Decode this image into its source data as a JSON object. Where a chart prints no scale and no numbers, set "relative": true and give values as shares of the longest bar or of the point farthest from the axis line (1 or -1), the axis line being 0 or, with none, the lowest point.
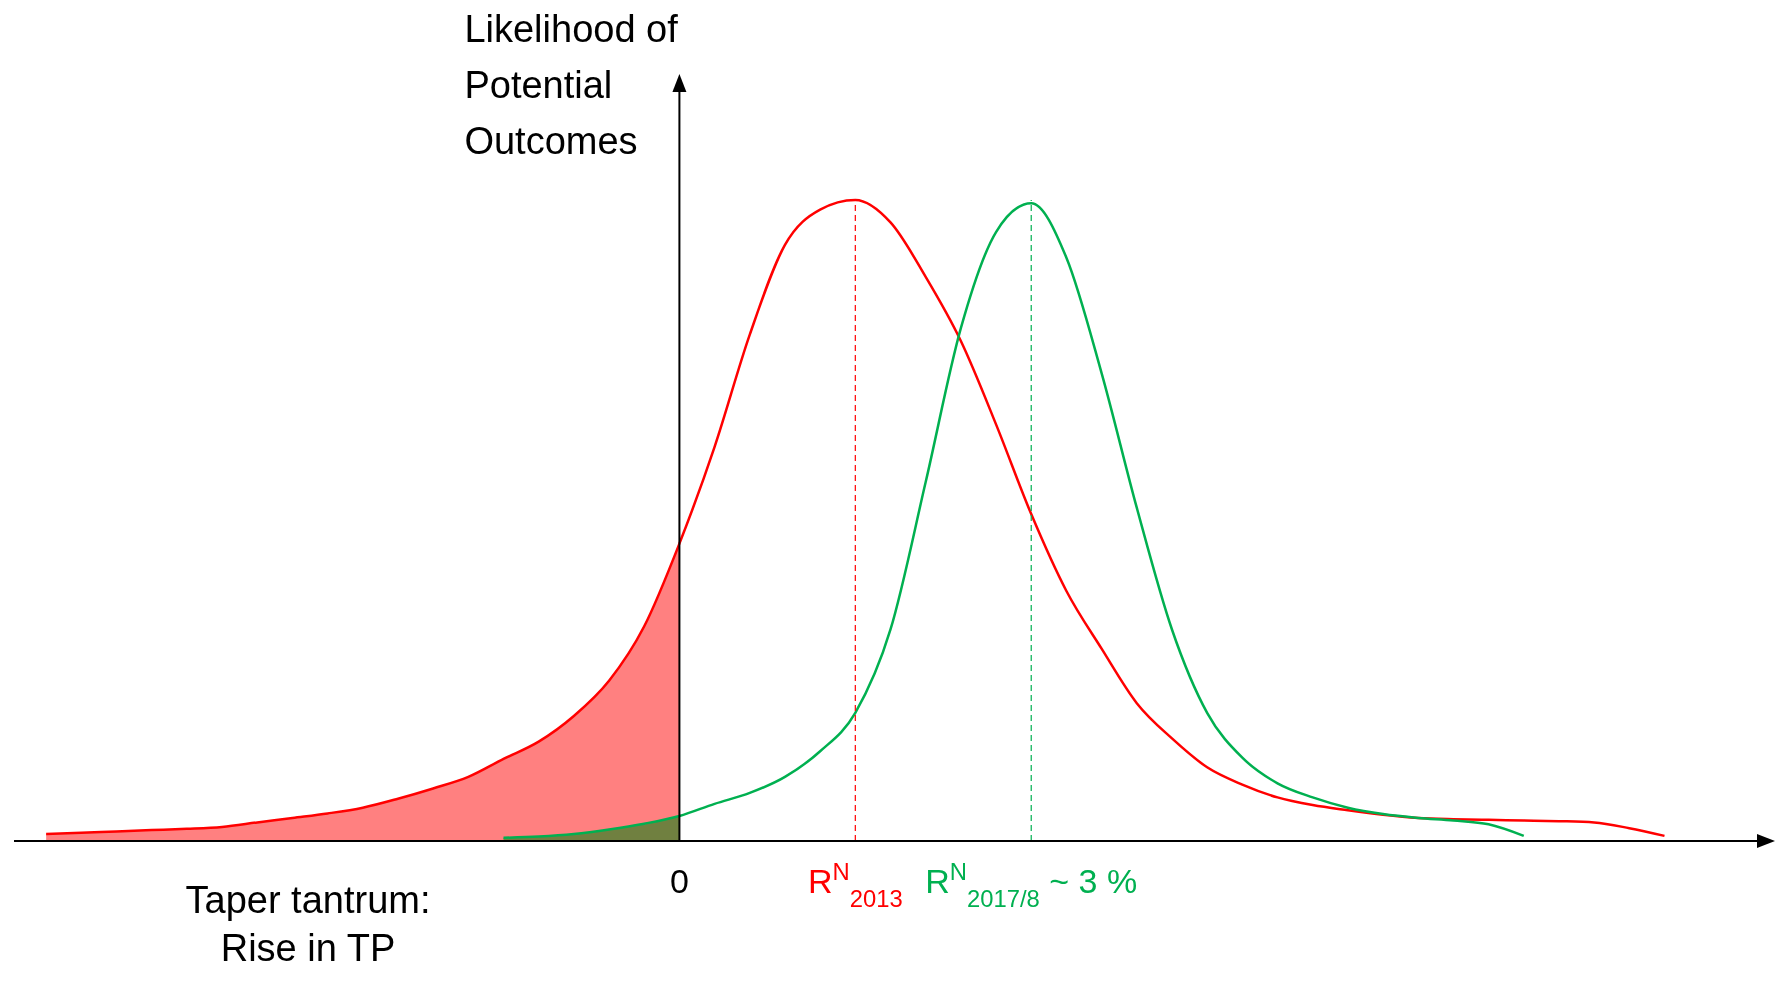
{
  "chart_data": {
    "type": "line",
    "relative": true,
    "xlabel": "Taper tantrum:\nRise in TP",
    "ylabel": "Likelihood of\nPotential\nOutcomes",
    "tick_labels": "x",
    "line_style": "solid",
    "grid": false,
    "marker": "none",
    "categories": [
      null,
      null,
      null,
      null,
      null,
      null,
      null,
      null,
      null,
      null,
      null,
      null,
      null,
      null,
      null,
      null,
      null,
      null,
      "0",
      null,
      null,
      null,
      null,
      "R$^{N}$$_{2013}$",
      null,
      null,
      null,
      null,
      "R$^{N}$$_{2017/8}$ ~ 3 %",
      null,
      null,
      null,
      null,
      null,
      null,
      null,
      null,
      null,
      null,
      null,
      null,
      null,
      null,
      null,
      null,
      null,
      null
    ],
    "ref_lines": [
      {
        "axis": "x",
        "value": "R$^{N}$$_{2013}$",
        "color": "#ff0000",
        "line_style": "dashed"
      },
      {
        "axis": "x",
        "value": "R$^{N}$$_{2017/8}$ ~ 3 %",
        "color": "#00b050",
        "line_style": "dashed"
      }
    ],
    "series": [
      {
        "type": "area",
        "color": "#ff8080",
        "values": [
          0.011,
          0.013,
          0.015,
          0.017,
          0.019,
          0.022,
          0.029,
          0.036,
          0.043,
          0.052,
          0.066,
          0.082,
          0.1,
          0.128,
          0.155,
          0.195,
          0.25,
          0.335,
          0.464,
          null,
          null,
          null,
          null,
          null,
          null,
          null,
          null,
          null,
          null,
          null,
          null,
          null,
          null,
          null,
          null,
          null,
          null,
          null,
          null,
          null,
          null,
          null,
          null,
          null,
          null,
          null,
          null
        ]
      },
      {
        "type": "area",
        "color": "#708040",
        "values": [
          null,
          null,
          null,
          null,
          null,
          null,
          null,
          null,
          null,
          null,
          null,
          null,
          null,
          0.005,
          0.007,
          0.011,
          0.018,
          0.027,
          0.039,
          null,
          null,
          null,
          null,
          null,
          null,
          null,
          null,
          null,
          null,
          null,
          null,
          null,
          null,
          null,
          null,
          null,
          null,
          null,
          null,
          null,
          null,
          null,
          null,
          null,
          null,
          null,
          null
        ]
      },
      {
        "type": "line",
        "color": "#ff0000",
        "values": [
          0.011,
          0.013,
          0.015,
          0.017,
          0.019,
          0.022,
          0.029,
          0.036,
          0.043,
          0.052,
          0.066,
          0.082,
          0.1,
          0.128,
          0.155,
          0.195,
          0.25,
          0.335,
          0.464,
          0.615,
          0.79,
          0.93,
          0.985,
          1,
          0.965,
          0.88,
          0.78,
          0.65,
          0.51,
          0.39,
          0.3,
          0.215,
          0.16,
          0.115,
          0.088,
          0.068,
          0.056,
          0.048,
          0.041,
          0.036,
          0.034,
          0.033,
          0.032,
          0.031,
          0.029,
          0.02,
          0.008
        ]
      },
      {
        "type": "line",
        "color": "#00b050",
        "values": [
          null,
          null,
          null,
          null,
          null,
          null,
          null,
          null,
          null,
          null,
          null,
          null,
          null,
          0.005,
          0.007,
          0.011,
          0.018,
          0.027,
          0.039,
          0.058,
          0.075,
          0.1,
          0.14,
          0.2,
          0.33,
          0.56,
          0.8,
          0.95,
          0.995,
          0.91,
          0.73,
          0.52,
          0.33,
          0.2,
          0.13,
          0.09,
          0.068,
          0.052,
          0.042,
          0.036,
          0.032,
          0.026,
          0.008,
          null,
          null,
          null,
          null
        ]
      }
    ]
  }
}
